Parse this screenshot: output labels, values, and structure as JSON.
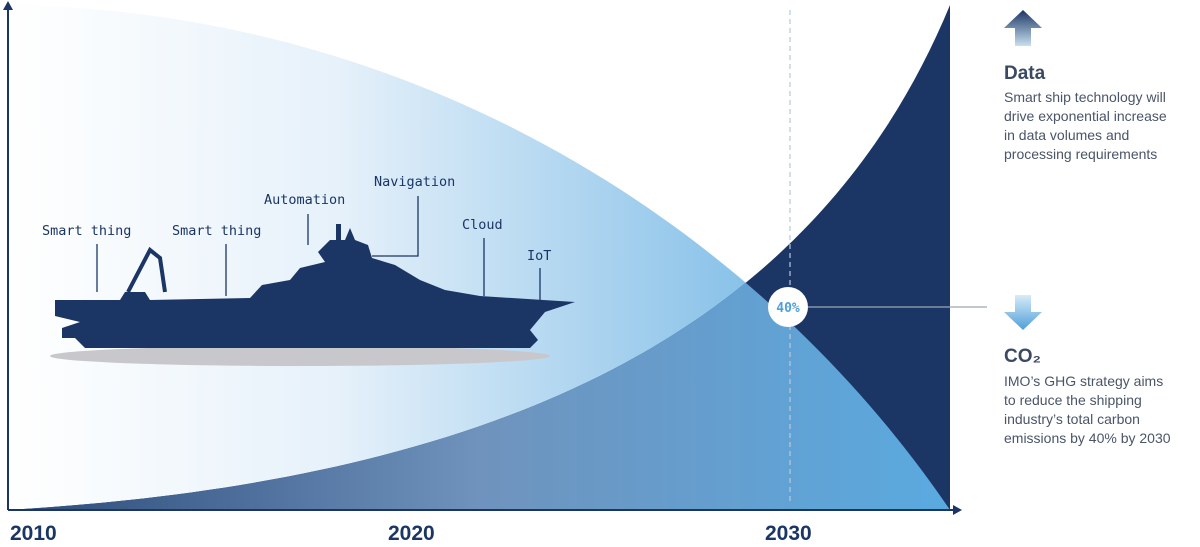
{
  "ship": {
    "labels": [
      "Smart thing",
      "Smart thing",
      "Automation",
      "Navigation",
      "Cloud",
      "IoT"
    ]
  },
  "marker": "40%",
  "axis": {
    "labels": [
      "2010",
      "2020",
      "2030"
    ]
  },
  "panels": [
    {
      "title": "Data",
      "lines": [
        "Smart ship technology will",
        "drive exponential increase",
        "in data volumes and",
        "processing requirements"
      ]
    },
    {
      "title": "CO₂",
      "lines": [
        "IMO’s GHG strategy aims",
        "to reduce the shipping",
        "industry’s total carbon",
        "emissions by 40% by 2030"
      ]
    }
  ]
}
